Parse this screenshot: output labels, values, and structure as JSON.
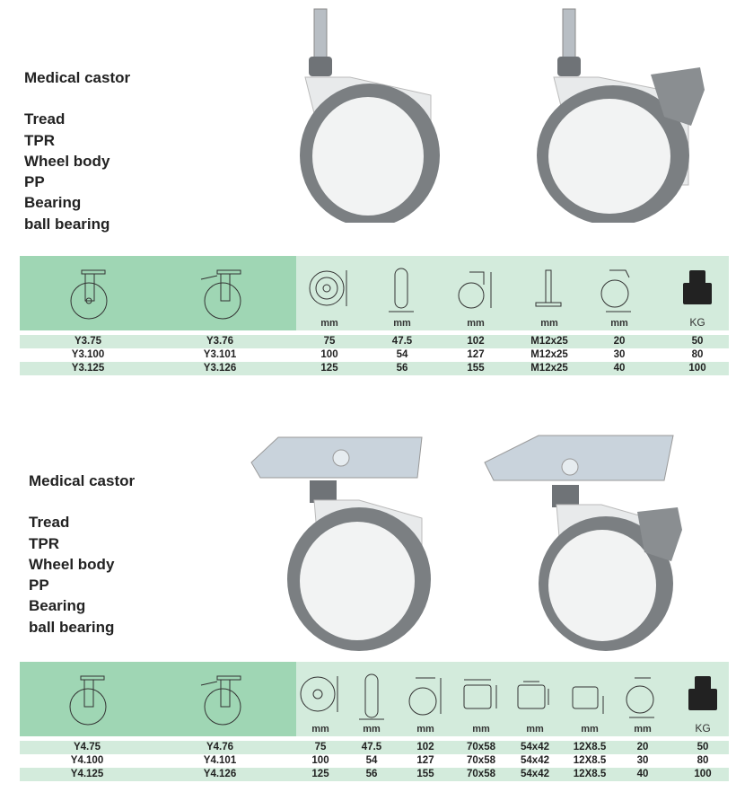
{
  "sections": [
    {
      "title": "Medical castor",
      "specs": [
        "Tread",
        "TPR",
        "Wheel body",
        "PP",
        "Bearing",
        "ball bearing"
      ],
      "mount": "threaded stem",
      "table": {
        "units": [
          "mm",
          "mm",
          "mm",
          "mm",
          "mm",
          "KG"
        ],
        "rows": [
          [
            "Y3.75",
            "Y3.76",
            "75",
            "47.5",
            "102",
            "M12x25",
            "20",
            "50"
          ],
          [
            "Y3.100",
            "Y3.101",
            "100",
            "54",
            "127",
            "M12x25",
            "30",
            "80"
          ],
          [
            "Y3.125",
            "Y3.126",
            "125",
            "56",
            "155",
            "M12x25",
            "40",
            "100"
          ]
        ]
      }
    },
    {
      "title": "Medical castor",
      "specs": [
        "Tread",
        "TPR",
        "Wheel body",
        "PP",
        "Bearing",
        "ball bearing"
      ],
      "mount": "top plate",
      "table": {
        "units": [
          "mm",
          "mm",
          "mm",
          "mm",
          "mm",
          "mm",
          "mm",
          "KG"
        ],
        "rows": [
          [
            "Y4.75",
            "Y4.76",
            "75",
            "47.5",
            "102",
            "70x58",
            "54x42",
            "12X8.5",
            "20",
            "50"
          ],
          [
            "Y4.100",
            "Y4.101",
            "100",
            "54",
            "127",
            "70x58",
            "54x42",
            "12X8.5",
            "30",
            "80"
          ],
          [
            "Y4.125",
            "Y4.126",
            "125",
            "56",
            "155",
            "70x58",
            "54x42",
            "12X8.5",
            "40",
            "100"
          ]
        ]
      }
    }
  ],
  "colors": {
    "header_dark": "#9fd6b4",
    "header_light": "#d3ebdc",
    "tread": "#7b7f82",
    "body": "#f2f3f3"
  }
}
